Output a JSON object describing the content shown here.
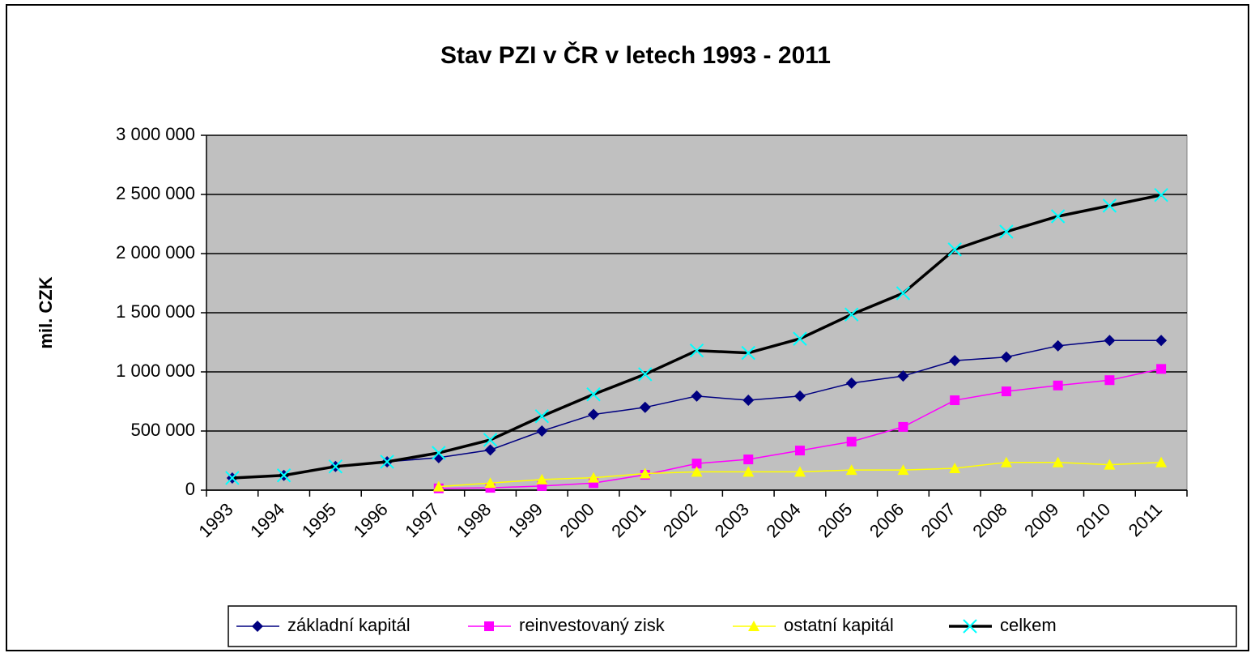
{
  "chart_data": {
    "type": "line",
    "title": "Stav PZI v ČR v letech 1993 - 2011",
    "y_label": "mil. CZK",
    "categories": [
      "1993",
      "1994",
      "1995",
      "1996",
      "1997",
      "1998",
      "1999",
      "2000",
      "2001",
      "2002",
      "2003",
      "2004",
      "2005",
      "2006",
      "2007",
      "2008",
      "2009",
      "2010",
      "2011"
    ],
    "series": [
      {
        "name": "základní kapitál",
        "color": "#000080",
        "values": [
          103000,
          125000,
          200000,
          240000,
          275000,
          340000,
          500000,
          640000,
          700000,
          795000,
          760000,
          795000,
          905000,
          965000,
          1095000,
          1125000,
          1220000,
          1265000,
          1265000
        ]
      },
      {
        "name": "reinvestovaný zisk",
        "color": "#ff00ff",
        "values": [
          null,
          null,
          null,
          null,
          15000,
          20000,
          35000,
          60000,
          130000,
          225000,
          260000,
          335000,
          410000,
          535000,
          760000,
          835000,
          885000,
          930000,
          1025000
        ]
      },
      {
        "name": "ostatní kapitál",
        "color": "#ffff00",
        "values": [
          null,
          null,
          null,
          null,
          30000,
          60000,
          90000,
          105000,
          140000,
          155000,
          155000,
          155000,
          170000,
          170000,
          185000,
          235000,
          235000,
          215000,
          235000
        ]
      },
      {
        "name": "celkem",
        "color": "#000000",
        "marker_color": "#00ffff",
        "values": [
          103000,
          125000,
          200000,
          240000,
          315000,
          425000,
          625000,
          810000,
          980000,
          1180000,
          1160000,
          1280000,
          1485000,
          1665000,
          2035000,
          2185000,
          2315000,
          2405000,
          2495000
        ]
      }
    ],
    "ylim": [
      0,
      3000000
    ],
    "yticks": [
      0,
      {
        "value": 500000,
        "label": "500 000"
      },
      {
        "value": 1000000,
        "label": "1 000 000"
      },
      {
        "value": 1500000,
        "label": "1 500 000"
      },
      {
        "value": 2000000,
        "label": "2 000 000"
      },
      {
        "value": 2500000,
        "label": "2 500 000"
      },
      {
        "value": 3000000,
        "label": "3 000 000"
      }
    ],
    "grid": true,
    "plot_background": "#c0c0c0",
    "legend": "bottom"
  }
}
